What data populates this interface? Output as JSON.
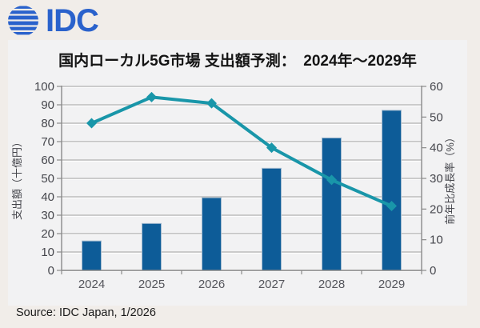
{
  "page": {
    "background": "#f1ede9"
  },
  "logo": {
    "text": "IDC",
    "color": "#2a62cc",
    "icon": "striped-globe-icon"
  },
  "chart": {
    "title": "国内ローカル5G市場 支出額予測：　2024年～2029年",
    "panel_background": "#f2f2f3"
  },
  "source": {
    "text": "Source: IDC Japan, 1/2026"
  },
  "chart_data": {
    "type": "combo-bar-line",
    "title": "国内ローカル5G市場 支出額予測： 2024年～2029年",
    "categories": [
      "2024",
      "2025",
      "2026",
      "2027",
      "2028",
      "2029"
    ],
    "series": [
      {
        "name": "支出額",
        "type": "bar",
        "axis": "left",
        "color": "#0d5c98",
        "edge_color": "#a3bbd0",
        "values": [
          16,
          25.5,
          39.5,
          55.5,
          72,
          87
        ]
      },
      {
        "name": "前年比成長率",
        "type": "line",
        "axis": "right",
        "color": "#1996a9",
        "marker": "diamond",
        "values": [
          48,
          56.5,
          54.5,
          40,
          29.5,
          21
        ]
      }
    ],
    "left_axis": {
      "label": "支出額（十億円）",
      "min": 0,
      "max": 100,
      "step": 10
    },
    "right_axis": {
      "label": "前年比成長率（%）",
      "min": 0,
      "max": 60,
      "step": 10
    },
    "grid": true,
    "legend": "none"
  }
}
